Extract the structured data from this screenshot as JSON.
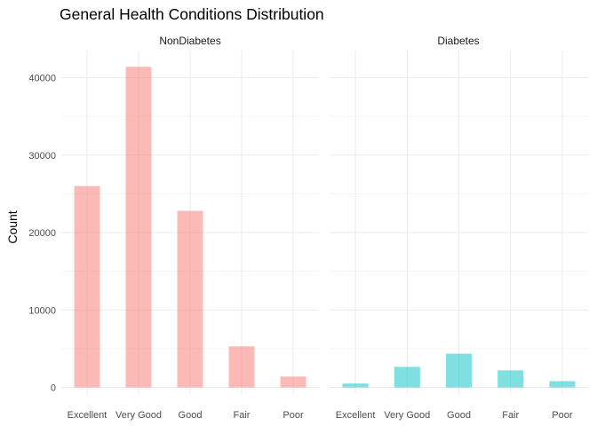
{
  "chart_data": {
    "type": "bar",
    "title": "General Health Conditions Distribution",
    "xlabel": "",
    "ylabel": "Count",
    "categories": [
      "Excellent",
      "Very Good",
      "Good",
      "Fair",
      "Poor"
    ],
    "ylim": [
      0,
      42000
    ],
    "yticks": [
      0,
      10000,
      20000,
      30000,
      40000
    ],
    "ytick_labels": [
      "0",
      "10000",
      "20000",
      "30000",
      "40000"
    ],
    "grid": true,
    "legend": "none",
    "facets": [
      {
        "name": "NonDiabetes",
        "color": "#F8766D",
        "values": [
          26000,
          41400,
          22800,
          5300,
          1400
        ]
      },
      {
        "name": "Diabetes",
        "color": "#00BFC4",
        "values": [
          500,
          2650,
          4350,
          2200,
          800
        ]
      }
    ]
  }
}
